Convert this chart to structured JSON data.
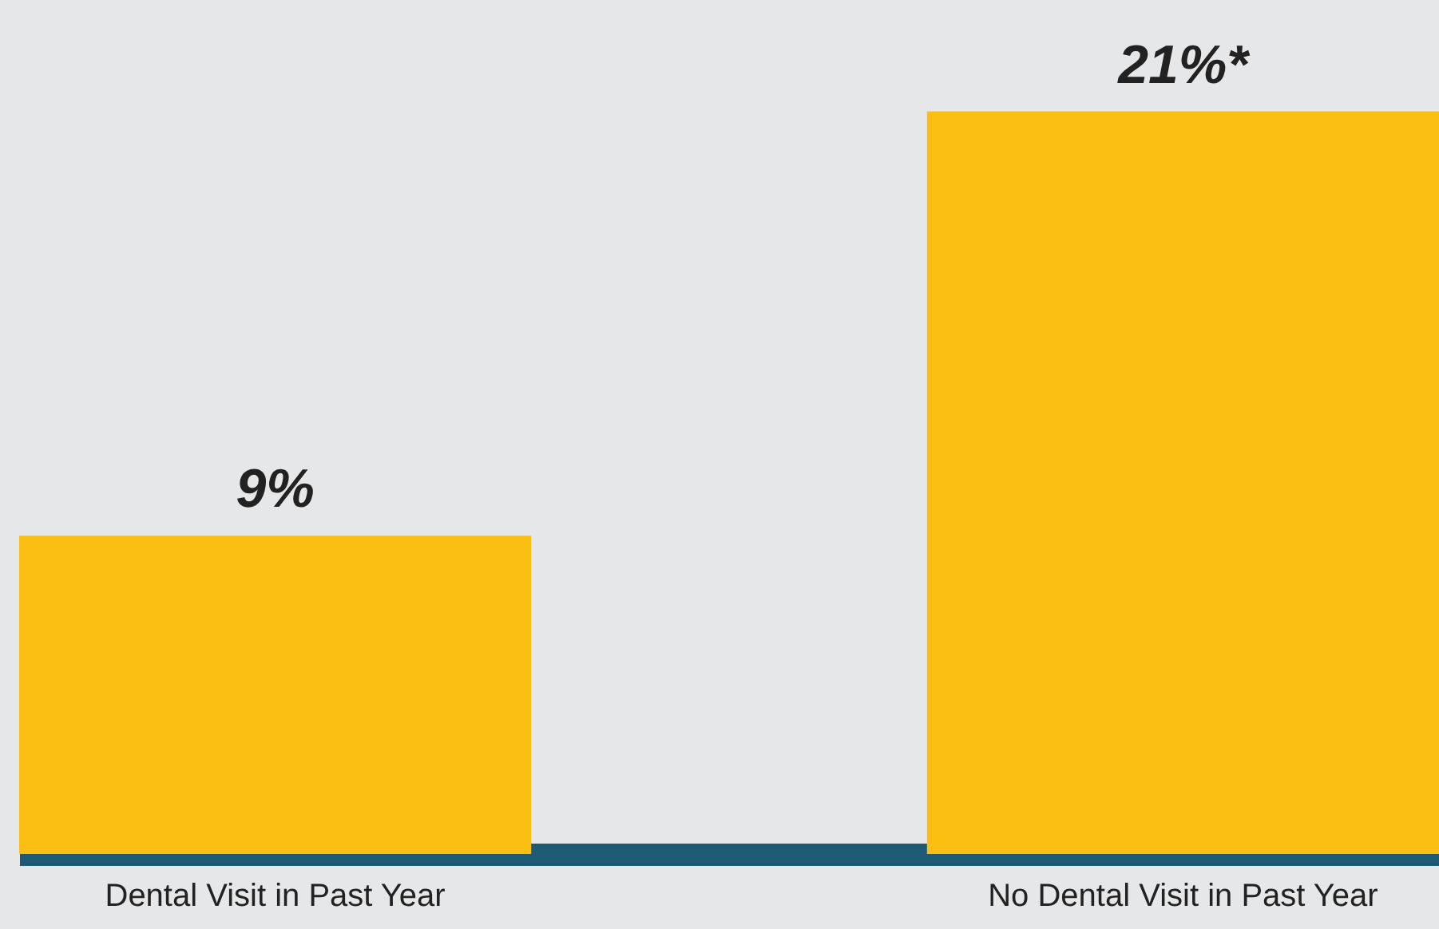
{
  "chart_data": {
    "type": "bar",
    "categories": [
      "Dental Visit in Past Year",
      "No Dental Visit in Past Year"
    ],
    "values": [
      9,
      21
    ],
    "color": "#fbbf14",
    "value_labels": [
      "9%",
      "21%*"
    ]
  }
}
